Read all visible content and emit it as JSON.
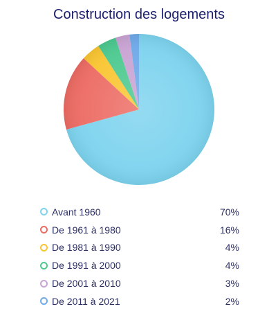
{
  "chart_data": {
    "type": "pie",
    "title": "Construction des logements",
    "slices": [
      {
        "label": "Avant 1960",
        "value": 70,
        "display": "70%",
        "color": "#7dd3ee"
      },
      {
        "label": "De 1961 à 1980",
        "value": 16,
        "display": "16%",
        "color": "#ec6b63"
      },
      {
        "label": "De 1981 à 1990",
        "value": 4,
        "display": "4%",
        "color": "#f9c531"
      },
      {
        "label": "De 1991 à 2000",
        "value": 4,
        "display": "4%",
        "color": "#4cc98f"
      },
      {
        "label": "De 2001 à 2010",
        "value": 3,
        "display": "3%",
        "color": "#c9a3d3"
      },
      {
        "label": "De 2011 à 2021",
        "value": 2,
        "display": "2%",
        "color": "#6ea9e8"
      }
    ]
  }
}
